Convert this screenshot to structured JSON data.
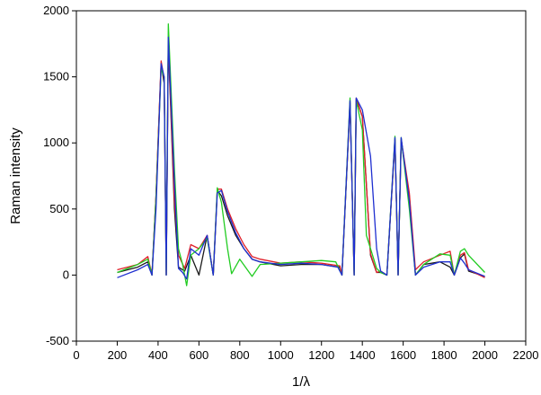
{
  "chart_data": {
    "type": "line",
    "xlabel": "1/λ",
    "ylabel": "Raman intensity",
    "xlim": [
      0,
      2200
    ],
    "ylim": [
      -500,
      2000
    ],
    "xticks": [
      0,
      200,
      400,
      600,
      800,
      1000,
      1200,
      1400,
      1600,
      1800,
      2000,
      2200
    ],
    "yticks": [
      -500,
      0,
      500,
      1000,
      1500,
      2000
    ],
    "grid": false,
    "colors": {
      "black": "#1a1a1a",
      "red": "#e0202a",
      "green": "#22cc22",
      "blue": "#1f2fd0"
    },
    "series": [
      {
        "color": "black",
        "points": [
          [
            200,
            20
          ],
          [
            300,
            60
          ],
          [
            350,
            100
          ],
          [
            370,
            0
          ],
          [
            390,
            600
          ],
          [
            415,
            1600
          ],
          [
            430,
            1450
          ],
          [
            440,
            0
          ],
          [
            450,
            1750
          ],
          [
            480,
            500
          ],
          [
            500,
            60
          ],
          [
            530,
            30
          ],
          [
            560,
            150
          ],
          [
            600,
            0
          ],
          [
            640,
            300
          ],
          [
            670,
            0
          ],
          [
            690,
            640
          ],
          [
            710,
            600
          ],
          [
            740,
            450
          ],
          [
            780,
            300
          ],
          [
            820,
            200
          ],
          [
            860,
            120
          ],
          [
            900,
            100
          ],
          [
            1000,
            70
          ],
          [
            1100,
            80
          ],
          [
            1200,
            80
          ],
          [
            1290,
            60
          ],
          [
            1300,
            0
          ],
          [
            1340,
            1300
          ],
          [
            1360,
            0
          ],
          [
            1370,
            1330
          ],
          [
            1400,
            1200
          ],
          [
            1440,
            150
          ],
          [
            1470,
            20
          ],
          [
            1490,
            20
          ],
          [
            1520,
            0
          ],
          [
            1560,
            1020
          ],
          [
            1575,
            0
          ],
          [
            1590,
            1020
          ],
          [
            1630,
            600
          ],
          [
            1660,
            0
          ],
          [
            1700,
            80
          ],
          [
            1780,
            100
          ],
          [
            1830,
            60
          ],
          [
            1850,
            0
          ],
          [
            1880,
            130
          ],
          [
            1900,
            160
          ],
          [
            1920,
            30
          ],
          [
            2000,
            -10
          ]
        ]
      },
      {
        "color": "red",
        "points": [
          [
            200,
            40
          ],
          [
            300,
            80
          ],
          [
            350,
            140
          ],
          [
            370,
            0
          ],
          [
            390,
            600
          ],
          [
            415,
            1620
          ],
          [
            430,
            1480
          ],
          [
            440,
            0
          ],
          [
            450,
            1780
          ],
          [
            480,
            560
          ],
          [
            500,
            150
          ],
          [
            530,
            50
          ],
          [
            560,
            230
          ],
          [
            600,
            200
          ],
          [
            640,
            300
          ],
          [
            670,
            0
          ],
          [
            690,
            650
          ],
          [
            710,
            650
          ],
          [
            740,
            500
          ],
          [
            780,
            350
          ],
          [
            820,
            230
          ],
          [
            860,
            140
          ],
          [
            900,
            120
          ],
          [
            1000,
            90
          ],
          [
            1100,
            100
          ],
          [
            1200,
            90
          ],
          [
            1290,
            70
          ],
          [
            1300,
            0
          ],
          [
            1340,
            1310
          ],
          [
            1360,
            0
          ],
          [
            1370,
            1340
          ],
          [
            1400,
            1200
          ],
          [
            1440,
            160
          ],
          [
            1470,
            20
          ],
          [
            1490,
            30
          ],
          [
            1520,
            0
          ],
          [
            1560,
            1030
          ],
          [
            1575,
            0
          ],
          [
            1590,
            1030
          ],
          [
            1630,
            620
          ],
          [
            1660,
            40
          ],
          [
            1700,
            100
          ],
          [
            1780,
            150
          ],
          [
            1830,
            180
          ],
          [
            1850,
            0
          ],
          [
            1880,
            150
          ],
          [
            1900,
            170
          ],
          [
            1920,
            40
          ],
          [
            2000,
            -20
          ]
        ]
      },
      {
        "color": "green",
        "points": [
          [
            200,
            20
          ],
          [
            300,
            80
          ],
          [
            350,
            120
          ],
          [
            370,
            0
          ],
          [
            390,
            580
          ],
          [
            415,
            1560
          ],
          [
            430,
            1500
          ],
          [
            440,
            0
          ],
          [
            450,
            1900
          ],
          [
            480,
            800
          ],
          [
            500,
            200
          ],
          [
            520,
            80
          ],
          [
            540,
            -80
          ],
          [
            560,
            150
          ],
          [
            600,
            200
          ],
          [
            640,
            280
          ],
          [
            670,
            0
          ],
          [
            690,
            660
          ],
          [
            710,
            550
          ],
          [
            740,
            200
          ],
          [
            760,
            10
          ],
          [
            800,
            120
          ],
          [
            860,
            -10
          ],
          [
            900,
            80
          ],
          [
            1000,
            90
          ],
          [
            1100,
            100
          ],
          [
            1200,
            110
          ],
          [
            1270,
            100
          ],
          [
            1300,
            0
          ],
          [
            1340,
            1340
          ],
          [
            1360,
            0
          ],
          [
            1370,
            1320
          ],
          [
            1400,
            1100
          ],
          [
            1420,
            300
          ],
          [
            1440,
            200
          ],
          [
            1470,
            50
          ],
          [
            1490,
            20
          ],
          [
            1520,
            0
          ],
          [
            1560,
            1050
          ],
          [
            1575,
            0
          ],
          [
            1590,
            1040
          ],
          [
            1630,
            500
          ],
          [
            1660,
            0
          ],
          [
            1700,
            80
          ],
          [
            1780,
            160
          ],
          [
            1830,
            150
          ],
          [
            1850,
            0
          ],
          [
            1880,
            180
          ],
          [
            1900,
            200
          ],
          [
            1920,
            150
          ],
          [
            2000,
            20
          ]
        ]
      },
      {
        "color": "blue",
        "points": [
          [
            200,
            -20
          ],
          [
            300,
            40
          ],
          [
            350,
            80
          ],
          [
            370,
            0
          ],
          [
            390,
            500
          ],
          [
            415,
            1600
          ],
          [
            430,
            1500
          ],
          [
            440,
            0
          ],
          [
            450,
            1800
          ],
          [
            480,
            700
          ],
          [
            500,
            50
          ],
          [
            520,
            20
          ],
          [
            540,
            -30
          ],
          [
            560,
            200
          ],
          [
            600,
            150
          ],
          [
            640,
            300
          ],
          [
            670,
            0
          ],
          [
            690,
            620
          ],
          [
            710,
            640
          ],
          [
            740,
            480
          ],
          [
            780,
            320
          ],
          [
            820,
            200
          ],
          [
            860,
            120
          ],
          [
            900,
            100
          ],
          [
            1000,
            80
          ],
          [
            1100,
            90
          ],
          [
            1200,
            80
          ],
          [
            1280,
            60
          ],
          [
            1300,
            0
          ],
          [
            1340,
            1320
          ],
          [
            1360,
            0
          ],
          [
            1370,
            1340
          ],
          [
            1400,
            1250
          ],
          [
            1440,
            900
          ],
          [
            1470,
            200
          ],
          [
            1490,
            30
          ],
          [
            1520,
            0
          ],
          [
            1560,
            1040
          ],
          [
            1575,
            0
          ],
          [
            1590,
            1040
          ],
          [
            1630,
            560
          ],
          [
            1660,
            0
          ],
          [
            1700,
            60
          ],
          [
            1780,
            100
          ],
          [
            1830,
            100
          ],
          [
            1850,
            0
          ],
          [
            1880,
            130
          ],
          [
            1900,
            90
          ],
          [
            1920,
            40
          ],
          [
            2000,
            -10
          ]
        ]
      }
    ]
  }
}
